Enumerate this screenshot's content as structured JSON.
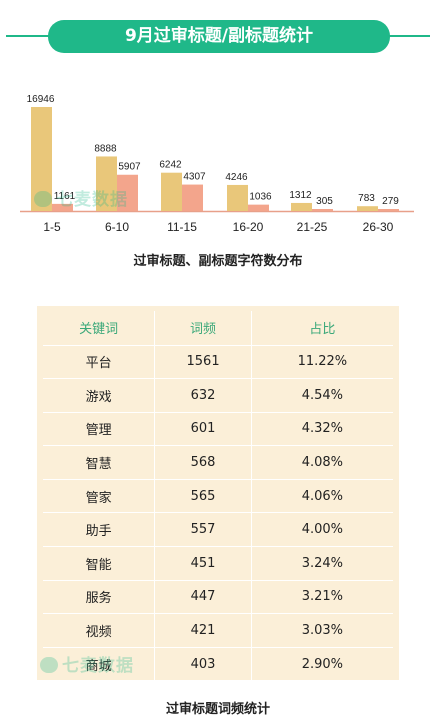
{
  "header": {
    "title": "9月过审标题/副标题统计"
  },
  "watermark_text": "七麦数据",
  "chart_caption": "过审标题、副标题字符数分布",
  "chart_data": {
    "type": "bar",
    "categories": [
      "1-5",
      "6-10",
      "11-15",
      "16-20",
      "21-25",
      "26-30"
    ],
    "series": [
      {
        "values": [
          16946,
          8888,
          6242,
          4246,
          1312,
          783
        ],
        "color": "#e9c77a"
      },
      {
        "values": [
          1161,
          5907,
          4307,
          1036,
          305,
          279
        ],
        "color": "#f3a58c"
      }
    ],
    "ylim": [
      0,
      17500
    ],
    "axis_color": "#e8a08a"
  },
  "table": {
    "headers": [
      "关键词",
      "词频",
      "占比"
    ],
    "rows": [
      [
        "平台",
        "1561",
        "11.22%"
      ],
      [
        "游戏",
        "632",
        "4.54%"
      ],
      [
        "管理",
        "601",
        "4.32%"
      ],
      [
        "智慧",
        "568",
        "4.08%"
      ],
      [
        "管家",
        "565",
        "4.06%"
      ],
      [
        "助手",
        "557",
        "4.00%"
      ],
      [
        "智能",
        "451",
        "3.24%"
      ],
      [
        "服务",
        "447",
        "3.21%"
      ],
      [
        "视频",
        "421",
        "3.03%"
      ],
      [
        "商城",
        "403",
        "2.90%"
      ]
    ]
  },
  "table_caption": "过审标题词频统计",
  "colors": {
    "accent": "#1fb889",
    "table_bg": "#fbefd8",
    "header_text": "#3aa879"
  }
}
